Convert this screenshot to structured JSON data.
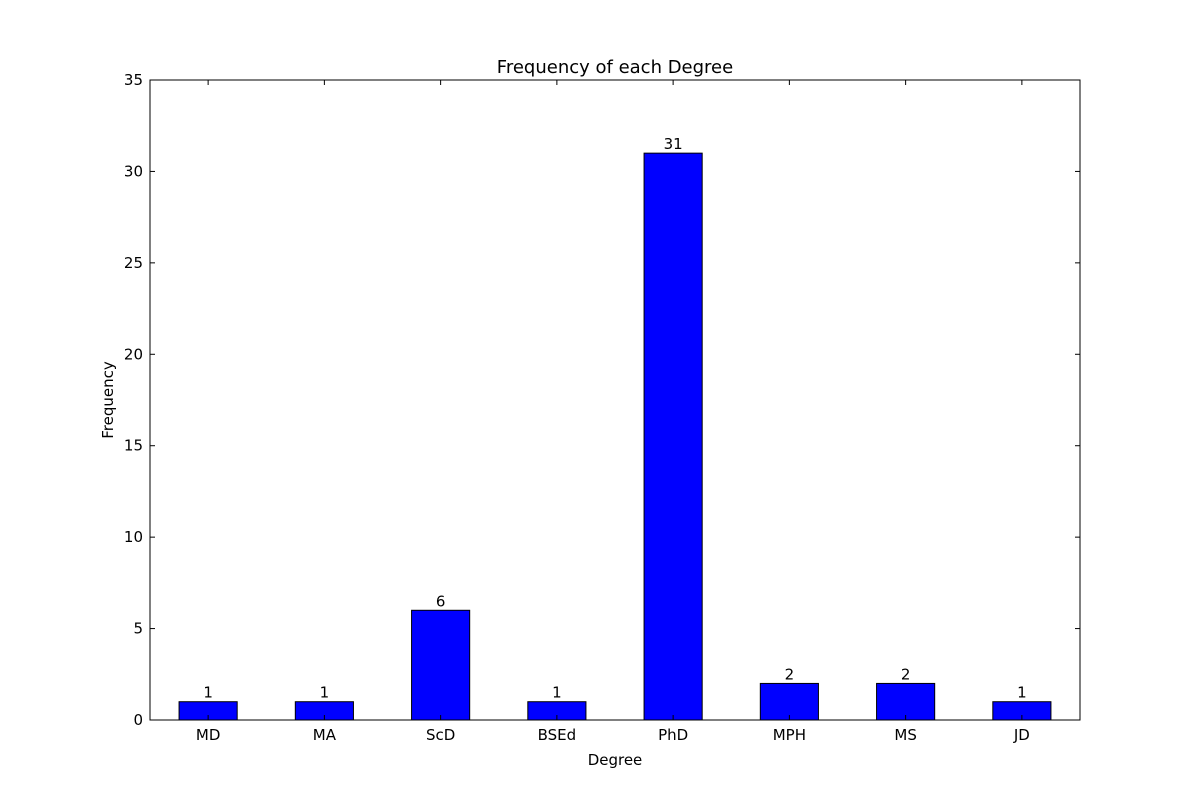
{
  "chart_data": {
    "type": "bar",
    "title": "Frequency of each Degree",
    "xlabel": "Degree",
    "ylabel": "Frequency",
    "categories": [
      "MD",
      "MA",
      "ScD",
      "BSEd",
      "PhD",
      "MPH",
      "MS",
      "JD"
    ],
    "values": [
      1,
      1,
      6,
      1,
      31,
      2,
      2,
      1
    ],
    "data_labels": [
      "1",
      "1",
      "6",
      "1",
      "31",
      "2",
      "2",
      "1"
    ],
    "ylim": [
      0,
      35
    ],
    "yticks": [
      0,
      5,
      10,
      15,
      20,
      25,
      30,
      35
    ],
    "ytick_labels": [
      "0",
      "5",
      "10",
      "15",
      "20",
      "25",
      "30",
      "35"
    ],
    "grid": false,
    "legend": "none",
    "bar_color": "#0000ff",
    "edge_color": "#000000"
  }
}
